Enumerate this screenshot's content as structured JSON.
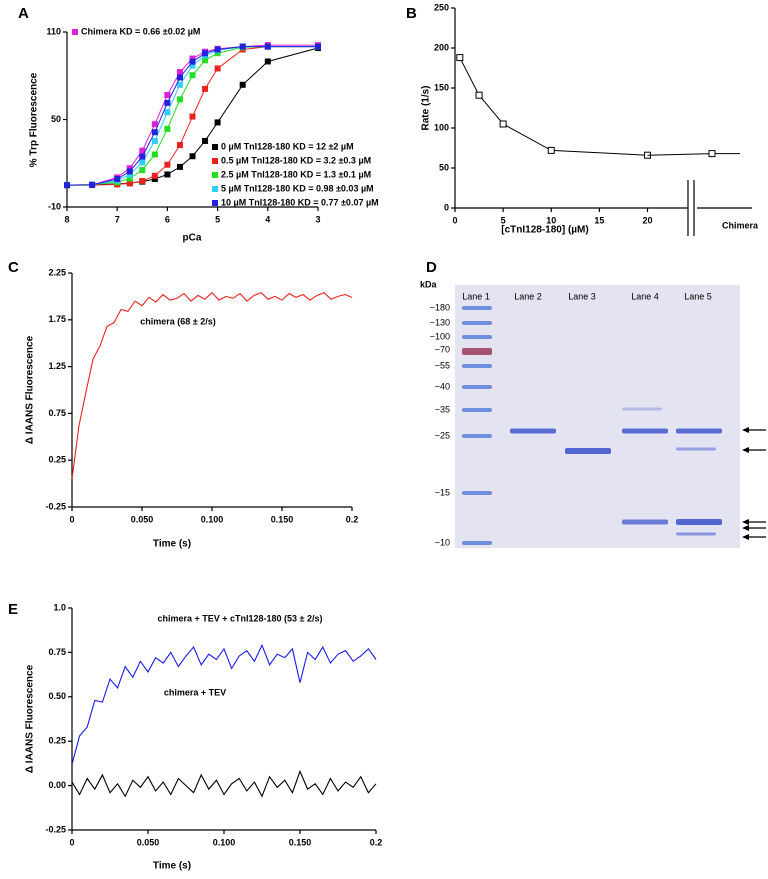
{
  "chart_data": [
    {
      "label": "A",
      "type": "line",
      "markers": "square",
      "x_label": "pCa",
      "y_label": "% Trp Fluorescence",
      "xlim": [
        8,
        3
      ],
      "ylim": [
        -10,
        110
      ],
      "xticks": [
        8,
        7,
        6,
        5,
        4,
        3
      ],
      "yticks": [
        -10,
        50,
        110
      ],
      "x": [
        8,
        7.5,
        7,
        6.75,
        6.5,
        6.25,
        6,
        5.75,
        5.5,
        5.25,
        5,
        4.5,
        4,
        3
      ],
      "series": [
        {
          "name": "Chimera KD = 0.66 ±0.02 µM",
          "color": "#e020d8",
          "values": [
            5,
            5.1,
            10.3,
            16.6,
            28.6,
            46.8,
            66.8,
            82.5,
            91.8,
            96.5,
            98.5,
            100,
            101,
            101
          ]
        },
        {
          "name": "0 µM TnI128-180 KD = 12 ±2 µM",
          "color": "#000000",
          "values": [
            5,
            5.3,
            5.8,
            6.4,
            7.4,
            9.2,
            12.3,
            17.5,
            24.8,
            35.3,
            48,
            73.8,
            89.8,
            99
          ]
        },
        {
          "name": "0.5 µM TnI128-180 KD = 3.2 ±0.3 µM",
          "color": "#e8231f",
          "values": [
            5,
            5,
            5.5,
            6.2,
            7.8,
            11.4,
            19,
            32.5,
            52,
            71,
            85,
            98,
            100,
            100
          ]
        },
        {
          "name": "2.5 µM TnI128-180 KD = 1.3 ±0.1 µM",
          "color": "#22dd22",
          "values": [
            5,
            5.4,
            7,
            9.6,
            15.3,
            26,
            43.6,
            63.8,
            80.4,
            90.6,
            95.5,
            99.5,
            100,
            100
          ]
        },
        {
          "name": "5 µM TnI128-180 KD = 0.98 ±0.03 µM",
          "color": "#33ccff",
          "values": [
            5,
            5.3,
            8.2,
            12.3,
            20.6,
            35.3,
            55,
            73.8,
            87,
            94,
            97.5,
            100,
            100,
            100
          ]
        },
        {
          "name": "10 µM TnI128-180 KD = 0.77 ±0.07 µM",
          "color": "#2222dd",
          "values": [
            5,
            5.2,
            9.2,
            14.4,
            24.6,
            41.3,
            61.4,
            78.8,
            89.7,
            95.4,
            98,
            100,
            100,
            100
          ]
        }
      ]
    },
    {
      "label": "B",
      "type": "line",
      "markers": "open-square",
      "x_label": "[cTnI128-180] (µM)",
      "y_label": "Rate (1/s)",
      "xlim": [
        0,
        24
      ],
      "ylim": [
        0,
        250
      ],
      "xticks": [
        0,
        5,
        10,
        15,
        20
      ],
      "yticks": [
        0,
        50,
        100,
        150,
        200,
        250
      ],
      "x": [
        0.5,
        2.5,
        5,
        10,
        20
      ],
      "series": [
        {
          "color": "#000000",
          "values": [
            188,
            141,
            105,
            72,
            66
          ]
        }
      ],
      "break_point": {
        "label": "Chimera",
        "value": 68
      }
    },
    {
      "label": "C",
      "type": "line",
      "x_label": "Time (s)",
      "y_label": "Δ IAANS Fluorescence",
      "xlim": [
        0,
        0.2
      ],
      "ylim": [
        -0.25,
        2.25
      ],
      "xticks": [
        0,
        {
          "value": 0.05,
          "label": "0.050"
        },
        {
          "value": 0.1,
          "label": "0.100"
        },
        {
          "value": 0.15,
          "label": "0.150"
        },
        0.2
      ],
      "yticks": [
        -0.25,
        0.25,
        0.75,
        1.25,
        1.75,
        2.25
      ],
      "x": [
        0,
        0.005,
        0.01,
        0.015,
        0.02,
        0.025,
        0.03,
        0.035,
        0.04,
        0.045,
        0.05,
        0.055,
        0.06,
        0.065,
        0.07,
        0.075,
        0.08,
        0.085,
        0.09,
        0.095,
        0.1,
        0.105,
        0.11,
        0.115,
        0.12,
        0.125,
        0.13,
        0.135,
        0.14,
        0.145,
        0.15,
        0.155,
        0.16,
        0.165,
        0.17,
        0.175,
        0.18,
        0.185,
        0.19,
        0.195,
        0.2
      ],
      "series": [
        {
          "name": "chimera (68 ± 2/s)",
          "color": "#e8231f",
          "values": [
            0.05,
            0.62,
            0.98,
            1.33,
            1.47,
            1.68,
            1.72,
            1.86,
            1.84,
            1.95,
            1.9,
            1.99,
            1.94,
            2.02,
            1.96,
            1.98,
            2.03,
            1.95,
            2.01,
            1.97,
            2.04,
            1.96,
            2.0,
            1.98,
            2.03,
            1.95,
            2.01,
            2.04,
            1.97,
            2.0,
            1.96,
            2.03,
            1.99,
            2.02,
            1.96,
            2.01,
            2.04,
            1.97,
            2.0,
            2.02,
            1.99
          ]
        }
      ]
    },
    {
      "label": "D",
      "type": "gel",
      "y_label": "kDa",
      "lanes": [
        "Lane 1",
        "Lane 2",
        "Lane 3",
        "Lane 4",
        "Lane 5"
      ],
      "markers": [
        "~180",
        "~130",
        "~100",
        "~70",
        "~55",
        "~40",
        "~35",
        "~25",
        "~15",
        "~10"
      ]
    },
    {
      "label": "E",
      "type": "line",
      "x_label": "Time (s)",
      "y_label": "Δ IAANS Fluorescence",
      "xlim": [
        0,
        0.2
      ],
      "ylim": [
        -0.25,
        1.0
      ],
      "xticks": [
        0,
        {
          "value": 0.05,
          "label": "0.050"
        },
        {
          "value": 0.1,
          "label": "0.100"
        },
        {
          "value": 0.15,
          "label": "0.150"
        },
        0.2
      ],
      "yticks": [
        -0.25,
        {
          "value": 0,
          "label": "0.00"
        },
        0.25,
        {
          "value": 0.5,
          "label": "0.50"
        },
        0.75,
        {
          "value": 1,
          "label": "1.0"
        }
      ],
      "x": [
        0,
        0.005,
        0.01,
        0.015,
        0.02,
        0.025,
        0.03,
        0.035,
        0.04,
        0.045,
        0.05,
        0.055,
        0.06,
        0.065,
        0.07,
        0.075,
        0.08,
        0.085,
        0.09,
        0.095,
        0.1,
        0.105,
        0.11,
        0.115,
        0.12,
        0.125,
        0.13,
        0.135,
        0.14,
        0.145,
        0.15,
        0.155,
        0.16,
        0.165,
        0.17,
        0.175,
        0.18,
        0.185,
        0.19,
        0.195,
        0.2
      ],
      "series": [
        {
          "name": "chimera + TEV + cTnI128-180 (53 ± 2/s)",
          "color": "#1a1ae6",
          "values": [
            0.12,
            0.28,
            0.33,
            0.48,
            0.47,
            0.6,
            0.55,
            0.67,
            0.61,
            0.7,
            0.64,
            0.72,
            0.69,
            0.75,
            0.67,
            0.73,
            0.78,
            0.68,
            0.74,
            0.71,
            0.77,
            0.66,
            0.73,
            0.76,
            0.7,
            0.79,
            0.68,
            0.74,
            0.72,
            0.77,
            0.58,
            0.75,
            0.71,
            0.78,
            0.69,
            0.74,
            0.76,
            0.7,
            0.73,
            0.77,
            0.71
          ]
        },
        {
          "name": "chimera + TEV",
          "color": "#000000",
          "values": [
            0.02,
            -0.05,
            0.04,
            -0.02,
            0.06,
            -0.04,
            0.01,
            -0.06,
            0.03,
            -0.01,
            0.05,
            -0.03,
            0.02,
            -0.05,
            0.04,
            0.0,
            -0.04,
            0.06,
            -0.02,
            0.03,
            -0.05,
            0.01,
            0.04,
            -0.03,
            0.02,
            -0.06,
            0.05,
            -0.01,
            0.03,
            -0.04,
            0.08,
            -0.02,
            0.01,
            -0.05,
            0.04,
            -0.03,
            0.02,
            -0.01,
            0.05,
            -0.04,
            0.01
          ]
        }
      ]
    }
  ]
}
